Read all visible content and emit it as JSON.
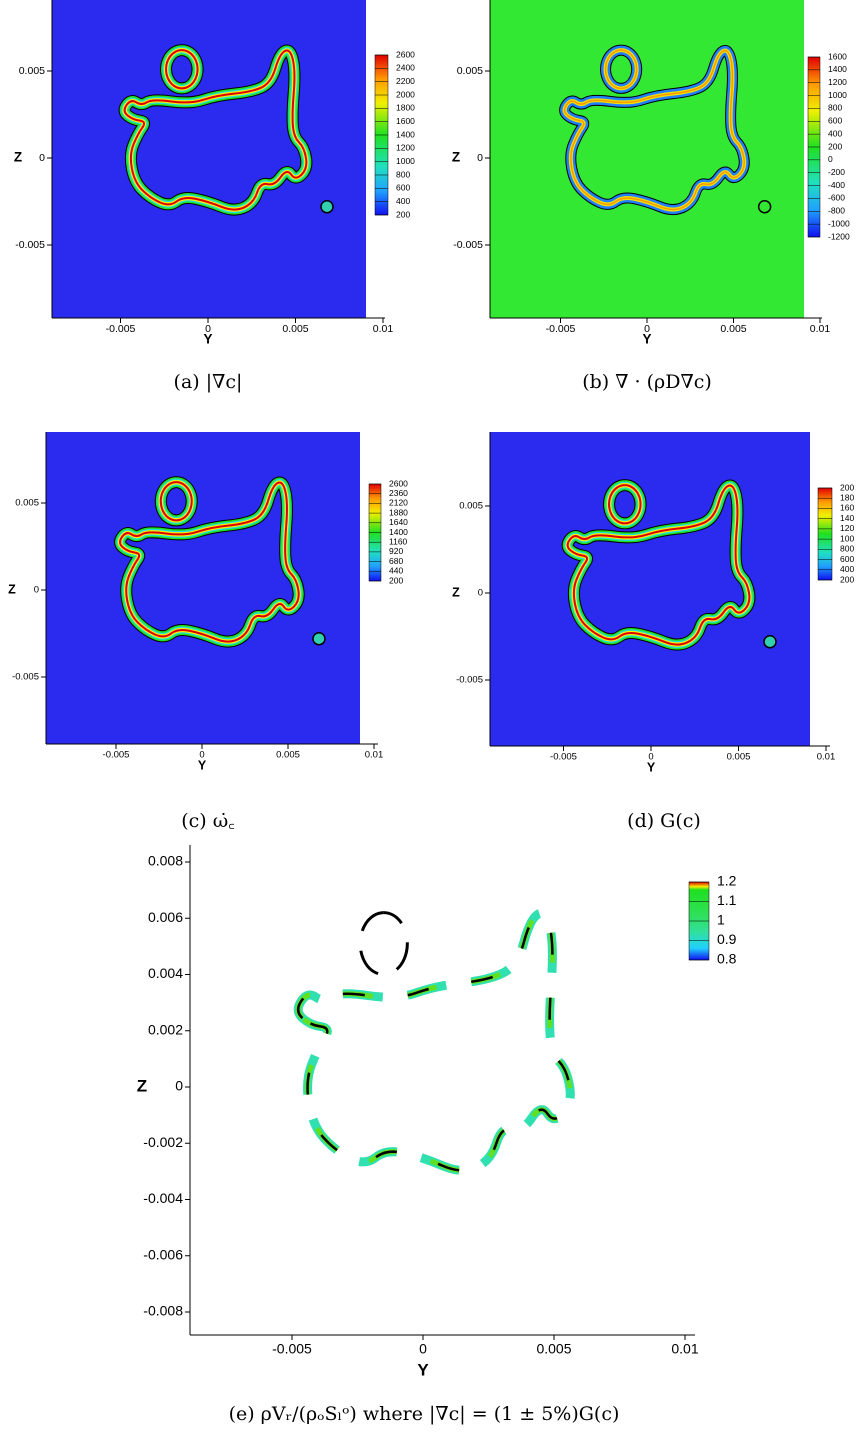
{
  "figure": {
    "panels": [
      {
        "caption": "(a) |∇c|",
        "x_label": "Y",
        "y_label": "Z",
        "xticks": [
          -0.005,
          0,
          0.005,
          0.01
        ],
        "yticks": [
          0.005,
          0,
          -0.005
        ],
        "colorbar": [
          2600,
          2400,
          2200,
          2000,
          1800,
          1600,
          1400,
          1200,
          1000,
          800,
          600,
          400,
          200
        ]
      },
      {
        "caption": "(b) ∇ · (ρD∇c)",
        "x_label": "Y",
        "y_label": "Z",
        "xticks": [
          -0.005,
          0,
          0.005,
          0.01
        ],
        "yticks": [
          0.005,
          0,
          -0.005
        ],
        "colorbar": [
          1600,
          1400,
          1200,
          1000,
          800,
          600,
          400,
          200,
          0,
          -200,
          -400,
          -600,
          -800,
          -1000,
          -1200
        ]
      },
      {
        "caption": "(c) ω̇꜀",
        "x_label": "Y",
        "y_label": "Z",
        "xticks": [
          -0.005,
          0,
          0.005,
          0.01
        ],
        "yticks": [
          0.005,
          0,
          -0.005
        ],
        "colorbar": [
          2600,
          2360,
          2120,
          1880,
          1640,
          1400,
          1160,
          920,
          680,
          440,
          200
        ]
      },
      {
        "caption": "(d) G(c)",
        "x_label": "Y",
        "y_label": "Z",
        "xticks": [
          -0.005,
          0,
          0.005,
          0.01
        ],
        "yticks": [
          0.005,
          0,
          -0.005
        ],
        "colorbar": [
          200,
          180,
          160,
          140,
          120,
          100,
          800,
          600,
          400,
          200
        ]
      },
      {
        "caption": "(e) ρVᵣ/(ρₒSₗᵒ) where |∇c| = (1 ± 5%)G(c)",
        "x_label": "Y",
        "y_label": "Z",
        "xticks": [
          -0.005,
          0,
          0.005,
          0.01
        ],
        "yticks": [
          0.008,
          0.006,
          0.004,
          0.002,
          0,
          -0.002,
          -0.004,
          -0.006,
          -0.008
        ],
        "colorbar": [
          1.2,
          1.1,
          1,
          0.9,
          0.8
        ]
      }
    ]
  }
}
